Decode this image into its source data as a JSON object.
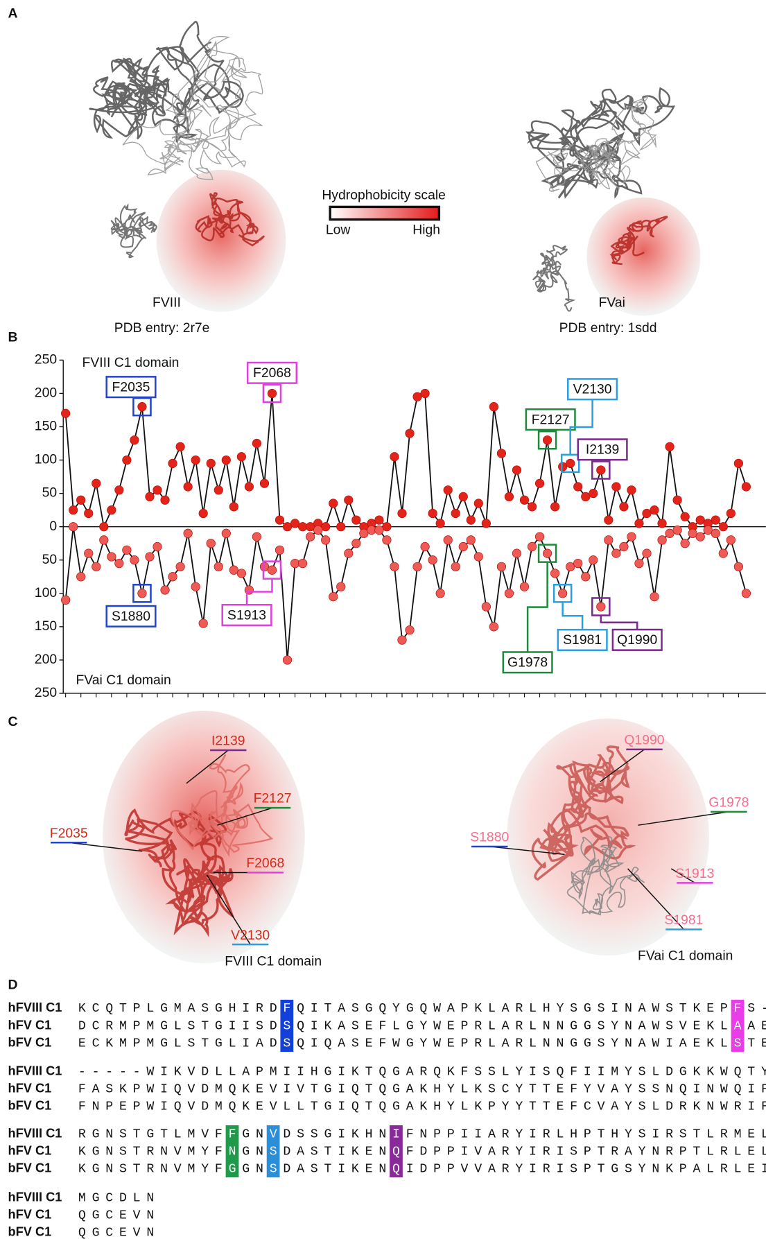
{
  "panel_labels": [
    "A",
    "B",
    "C",
    "D"
  ],
  "panel_a": {
    "left": {
      "name": "FVIII",
      "pdb": "PDB entry: 2r7e"
    },
    "right": {
      "name": "FVai",
      "pdb": "PDB entry: 1sdd"
    },
    "scale": {
      "title": "Hydrophobicity scale",
      "low": "Low",
      "high": "High",
      "colors": [
        "#ffffff",
        "#e41a1c"
      ]
    }
  },
  "chart_data": {
    "type": "line",
    "line_color": "#111111",
    "series": [
      {
        "name": "FVIII C1 domain",
        "color": "#e3241b",
        "values": [
          170,
          25,
          40,
          20,
          65,
          0,
          25,
          55,
          100,
          130,
          180,
          45,
          55,
          40,
          95,
          120,
          60,
          100,
          20,
          95,
          55,
          100,
          30,
          105,
          60,
          125,
          65,
          200,
          10,
          0,
          5,
          0,
          0,
          5,
          0,
          35,
          0,
          40,
          10,
          0,
          5,
          10,
          0,
          105,
          20,
          140,
          195,
          200,
          20,
          5,
          55,
          20,
          45,
          10,
          35,
          5,
          180,
          110,
          45,
          85,
          40,
          30,
          65,
          130,
          30,
          90,
          95,
          60,
          45,
          50,
          85,
          10,
          60,
          30,
          55,
          5,
          20,
          25,
          5,
          120,
          40,
          15,
          0,
          10,
          5,
          10,
          0,
          20,
          95,
          60
        ]
      },
      {
        "name": "FVai C1 domain",
        "color": "#ee5a55",
        "values": [
          -110,
          0,
          -75,
          -40,
          -60,
          -20,
          -45,
          -55,
          -35,
          -50,
          -100,
          -45,
          -30,
          -95,
          -75,
          -60,
          -10,
          -90,
          -145,
          -25,
          -60,
          -10,
          -65,
          -70,
          -95,
          -15,
          -60,
          -65,
          -35,
          -200,
          -55,
          -55,
          -15,
          -5,
          -20,
          -105,
          -90,
          -40,
          -25,
          -10,
          -5,
          -5,
          -20,
          -60,
          -170,
          -155,
          -60,
          -30,
          -50,
          -100,
          -20,
          -60,
          -30,
          -20,
          -45,
          -120,
          -150,
          -60,
          -100,
          -40,
          -90,
          -30,
          -15,
          -40,
          -70,
          -100,
          -60,
          -55,
          -75,
          -50,
          -120,
          -20,
          -40,
          -30,
          -15,
          -55,
          -40,
          -105,
          -20,
          -10,
          -5,
          -25,
          -10,
          -15,
          -5,
          -10,
          -40,
          -20,
          -60,
          -100
        ]
      }
    ],
    "ylim": [
      -250,
      250
    ],
    "yticks": [
      {
        "value": -250,
        "label": "250"
      },
      {
        "value": -200,
        "label": "200"
      },
      {
        "value": -150,
        "label": "150"
      },
      {
        "value": -100,
        "label": "100"
      },
      {
        "value": -50,
        "label": "50"
      },
      0,
      50,
      100,
      150,
      200,
      250
    ],
    "annotations": [
      {
        "text": "F2035",
        "series": 0,
        "index": 10,
        "color": "#2344c8"
      },
      {
        "text": "F2068",
        "series": 0,
        "index": 27,
        "color": "#e040e0"
      },
      {
        "text": "F2127",
        "series": 0,
        "index": 63,
        "color": "#1e8a3c"
      },
      {
        "text": "V2130",
        "series": 0,
        "index": 66,
        "color": "#2a9fe0"
      },
      {
        "text": "I2139",
        "series": 0,
        "index": 70,
        "color": "#7a2a8a"
      },
      {
        "text": "S1880",
        "series": 1,
        "index": 10,
        "color": "#2344c8"
      },
      {
        "text": "S1913",
        "series": 1,
        "index": 27,
        "color": "#e040e0"
      },
      {
        "text": "G1978",
        "series": 1,
        "index": 63,
        "color": "#1e8a3c"
      },
      {
        "text": "S1981",
        "series": 1,
        "index": 65,
        "color": "#2a9fe0"
      },
      {
        "text": "Q1990",
        "series": 1,
        "index": 70,
        "color": "#7a2a8a"
      }
    ]
  },
  "panel_c": {
    "left": {
      "title": "FVIII C1 domain",
      "text_color": "#d42a1a",
      "labels": [
        {
          "text": "I2139",
          "color": "#7a2a8a"
        },
        {
          "text": "F2127",
          "color": "#1e8a3c"
        },
        {
          "text": "F2035",
          "color": "#2344c8"
        },
        {
          "text": "F2068",
          "color": "#e040e0"
        },
        {
          "text": "V2130",
          "color": "#2a9fe0"
        }
      ]
    },
    "right": {
      "title": "FVai C1 domain",
      "text_color": "#f0708f",
      "labels": [
        {
          "text": "Q1990",
          "color": "#7a2a8a"
        },
        {
          "text": "G1978",
          "color": "#1e8a3c"
        },
        {
          "text": "S1880",
          "color": "#2344c8"
        },
        {
          "text": "S1913",
          "color": "#e040e0"
        },
        {
          "text": "S1981",
          "color": "#2a9fe0"
        }
      ]
    }
  },
  "alignment": {
    "blocks": [
      {
        "rows": [
          {
            "label": "hFVIII C1",
            "sequence": "KCQTPLGMASGHIRDFQITASGQYGQWAPKLARLHYSGSINAWSTKEPFS-"
          },
          {
            "label": "hFV C1",
            "sequence": "DCRMPMGLSTGIISDSQIKASEFLGYWEPRLARLNNGGSYNAWSVEKLAAE"
          },
          {
            "label": "bFV C1",
            "sequence": "ECKMPMGLSTGLIADSQIQASEFWGYWEPRLARLNNGGSYNAWIAEKLSTE"
          }
        ],
        "highlights": [
          {
            "column": 15,
            "color": "#1340d8"
          },
          {
            "column": 48,
            "color": "#e83de8"
          }
        ]
      },
      {
        "rows": [
          {
            "label": "hFVIII C1",
            "sequence": "-----WIKVDLLAPMIIHGIKTQGARQKFSSLYISQFIIMYSLDGKKWQTY"
          },
          {
            "label": "hFV C1",
            "sequence": "FASKPWIQVDMQKEVIVTGIQTQGAKHYLKSCYTTEFYVAYSSNQINWQIF"
          },
          {
            "label": "bFV C1",
            "sequence": "FNPEPWIQVDMQKEVLLTGIQTQGAKHYLKPYYTTEFCVAYSLDRKNWRIF"
          }
        ],
        "highlights": []
      },
      {
        "rows": [
          {
            "label": "hFVIII C1",
            "sequence": "RGNSTGTLMVFFGNVDSSGIKHNIFNPPIIARYIRLHPTHYSIRSTLRMEL"
          },
          {
            "label": "hFV C1",
            "sequence": "KGNSTRNVMYFNGNSDASTIKENQFDPPIVARYIRISPTRAYNRPTLRLEL"
          },
          {
            "label": "bFV C1",
            "sequence": "KGNSTRNVMYFGGNSDASTIKENQIDPPVVARYIRISPTGSYNKPALRLEI"
          }
        ],
        "highlights": [
          {
            "column": 11,
            "color": "#1f9a4a"
          },
          {
            "column": 14,
            "color": "#2a8fd8"
          },
          {
            "column": 23,
            "color": "#8a2a9a"
          }
        ]
      },
      {
        "rows": [
          {
            "label": "hFVIII C1",
            "sequence": "MGCDLN"
          },
          {
            "label": "hFV C1",
            "sequence": "QGCEVN"
          },
          {
            "label": "bFV C1",
            "sequence": "QGCEVN"
          }
        ],
        "highlights": []
      }
    ]
  }
}
